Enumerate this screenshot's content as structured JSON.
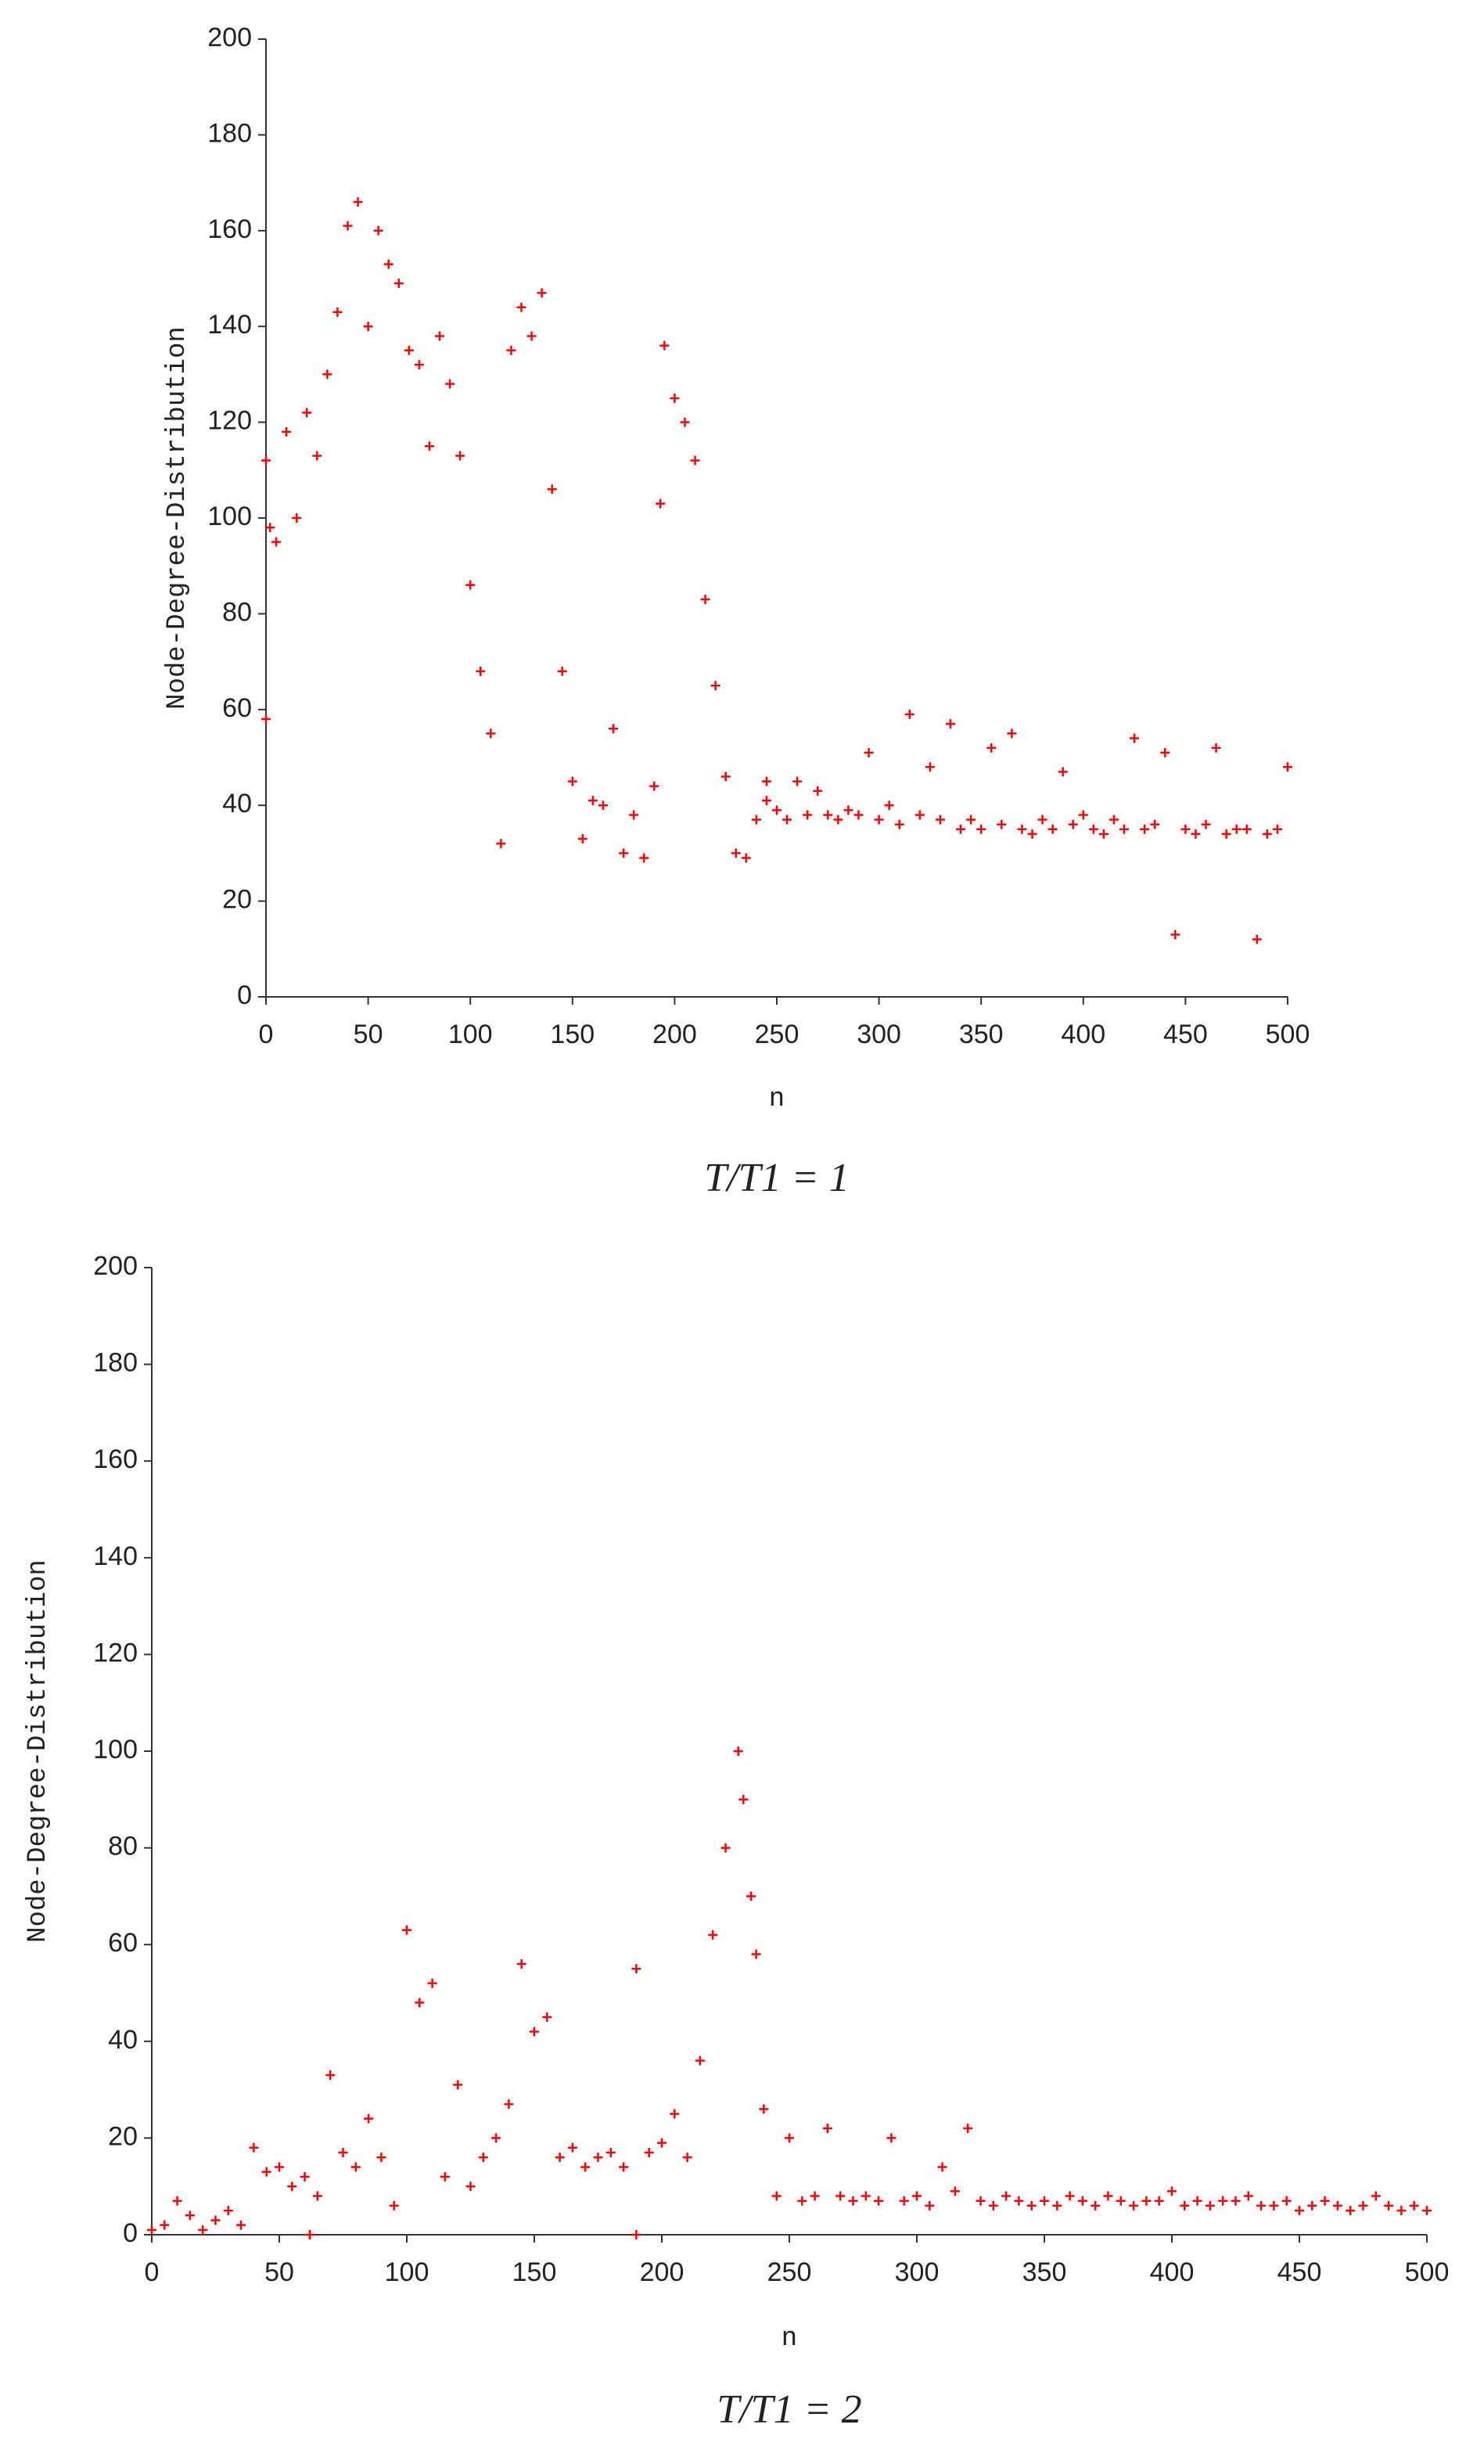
{
  "chart_data": [
    {
      "type": "scatter",
      "xlabel": "n",
      "ylabel": "Node-Degree-Distribution",
      "caption": "T/T1 = 1",
      "color": "#ff0000",
      "xlim": [
        0,
        500
      ],
      "ylim": [
        0,
        200
      ],
      "xticks": [
        0,
        50,
        100,
        150,
        200,
        250,
        300,
        350,
        400,
        450,
        500
      ],
      "yticks": [
        0,
        20,
        40,
        60,
        80,
        100,
        120,
        140,
        160,
        180,
        200
      ],
      "x": [
        0,
        5,
        10,
        15,
        20,
        25,
        30,
        35,
        40,
        45,
        50,
        55,
        60,
        65,
        70,
        75,
        80,
        85,
        90,
        95,
        100,
        105,
        110,
        115,
        120,
        125,
        130,
        135,
        140,
        145,
        150,
        155,
        160,
        165,
        170,
        175,
        180,
        185,
        190,
        195,
        200,
        205,
        210,
        215,
        220,
        225,
        230,
        235,
        240,
        245,
        250,
        255,
        260,
        265,
        270,
        275,
        280,
        285,
        290,
        295,
        300,
        305,
        310,
        315,
        320,
        325,
        330,
        335,
        340,
        345,
        350,
        355,
        360,
        365,
        370,
        375,
        380,
        385,
        390,
        395,
        400,
        405,
        410,
        415,
        420,
        425,
        430,
        435,
        440,
        445,
        450,
        455,
        460,
        465,
        470,
        475,
        480,
        485,
        490,
        495,
        500,
        0,
        2,
        193,
        245
      ],
      "values": [
        112,
        95,
        118,
        100,
        122,
        113,
        130,
        143,
        161,
        166,
        140,
        160,
        153,
        149,
        135,
        132,
        115,
        138,
        128,
        113,
        86,
        68,
        55,
        32,
        135,
        144,
        138,
        147,
        106,
        68,
        45,
        33,
        41,
        40,
        56,
        30,
        38,
        29,
        44,
        136,
        125,
        120,
        112,
        83,
        65,
        46,
        30,
        29,
        37,
        41,
        39,
        37,
        45,
        38,
        43,
        38,
        37,
        39,
        38,
        51,
        37,
        40,
        36,
        59,
        38,
        48,
        37,
        57,
        35,
        37,
        35,
        52,
        36,
        55,
        35,
        34,
        37,
        35,
        47,
        36,
        38,
        35,
        34,
        37,
        35,
        54,
        35,
        36,
        51,
        13,
        35,
        34,
        36,
        52,
        34,
        35,
        35,
        12,
        34,
        35,
        48,
        58,
        98,
        103,
        45
      ]
    },
    {
      "type": "scatter",
      "xlabel": "n",
      "ylabel": "Node-Degree-Distribution",
      "caption": "T/T1 = 2",
      "color": "#ff0000",
      "xlim": [
        0,
        500
      ],
      "ylim": [
        0,
        200
      ],
      "xticks": [
        0,
        50,
        100,
        150,
        200,
        250,
        300,
        350,
        400,
        450,
        500
      ],
      "yticks": [
        0,
        20,
        40,
        60,
        80,
        100,
        120,
        140,
        160,
        180,
        200
      ],
      "x": [
        0,
        5,
        10,
        15,
        20,
        25,
        30,
        35,
        40,
        45,
        50,
        55,
        60,
        65,
        70,
        75,
        80,
        85,
        90,
        95,
        100,
        105,
        110,
        115,
        120,
        125,
        130,
        135,
        140,
        145,
        150,
        155,
        160,
        165,
        170,
        175,
        180,
        185,
        190,
        195,
        200,
        205,
        210,
        215,
        220,
        225,
        230,
        235,
        240,
        245,
        250,
        255,
        260,
        265,
        270,
        275,
        280,
        285,
        290,
        295,
        300,
        305,
        310,
        315,
        320,
        325,
        330,
        335,
        340,
        345,
        350,
        355,
        360,
        365,
        370,
        375,
        380,
        385,
        390,
        395,
        400,
        405,
        410,
        415,
        420,
        425,
        430,
        435,
        440,
        445,
        450,
        455,
        460,
        465,
        470,
        475,
        480,
        485,
        490,
        495,
        500,
        62,
        190,
        232,
        237
      ],
      "values": [
        1,
        2,
        7,
        4,
        1,
        3,
        5,
        2,
        18,
        13,
        14,
        10,
        12,
        8,
        33,
        17,
        14,
        24,
        16,
        6,
        63,
        48,
        52,
        12,
        31,
        10,
        16,
        20,
        27,
        56,
        42,
        45,
        16,
        18,
        14,
        16,
        17,
        14,
        55,
        17,
        19,
        25,
        16,
        36,
        62,
        80,
        100,
        70,
        26,
        8,
        20,
        7,
        8,
        22,
        8,
        7,
        8,
        7,
        20,
        7,
        8,
        6,
        14,
        9,
        22,
        7,
        6,
        8,
        7,
        6,
        7,
        6,
        8,
        7,
        6,
        8,
        7,
        6,
        7,
        7,
        9,
        6,
        7,
        6,
        7,
        7,
        8,
        6,
        6,
        7,
        5,
        6,
        7,
        6,
        5,
        6,
        8,
        6,
        5,
        6,
        5,
        0,
        0,
        90,
        58
      ]
    }
  ]
}
